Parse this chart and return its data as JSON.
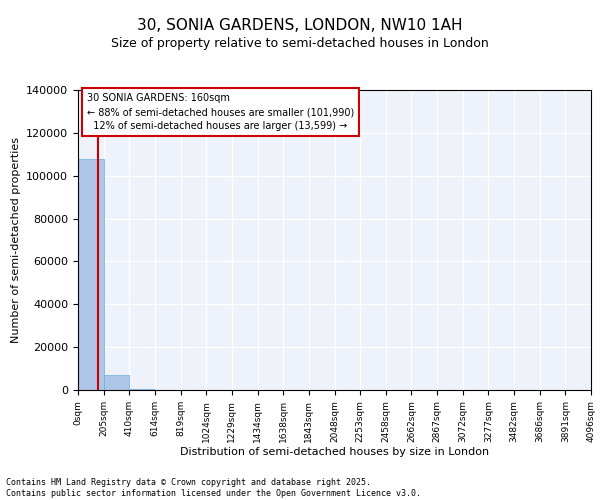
{
  "title": "30, SONIA GARDENS, LONDON, NW10 1AH",
  "subtitle": "Size of property relative to semi-detached houses in London",
  "xlabel": "Distribution of semi-detached houses by size in London",
  "ylabel": "Number of semi-detached properties",
  "property_size": 160,
  "property_label": "30 SONIA GARDENS: 160sqm",
  "annotation_line1": "← 88% of semi-detached houses are smaller (101,990)",
  "annotation_line2": "12% of semi-detached houses are larger (13,599) →",
  "bin_edges": [
    0,
    205,
    410,
    614,
    819,
    1024,
    1229,
    1434,
    1638,
    1843,
    2048,
    2253,
    2458,
    2662,
    2867,
    3072,
    3277,
    3482,
    3686,
    3891,
    4096
  ],
  "bin_labels": [
    "0sqm",
    "205sqm",
    "410sqm",
    "614sqm",
    "819sqm",
    "1024sqm",
    "1229sqm",
    "1434sqm",
    "1638sqm",
    "1843sqm",
    "2048sqm",
    "2253sqm",
    "2458sqm",
    "2662sqm",
    "2867sqm",
    "3072sqm",
    "3277sqm",
    "3482sqm",
    "3686sqm",
    "3891sqm",
    "4096sqm"
  ],
  "bar_values": [
    108000,
    7000,
    500,
    200,
    100,
    60,
    40,
    25,
    15,
    10,
    8,
    5,
    4,
    3,
    2,
    2,
    1,
    1,
    1,
    1
  ],
  "bar_color": "#aec6e8",
  "bar_edge_color": "#6aaed6",
  "red_line_color": "#cc0000",
  "ylim": [
    0,
    140000
  ],
  "yticks": [
    0,
    20000,
    40000,
    60000,
    80000,
    100000,
    120000,
    140000
  ],
  "bg_color": "#eef2fb",
  "grid_color": "#ffffff",
  "footer_line1": "Contains HM Land Registry data © Crown copyright and database right 2025.",
  "footer_line2": "Contains public sector information licensed under the Open Government Licence v3.0."
}
